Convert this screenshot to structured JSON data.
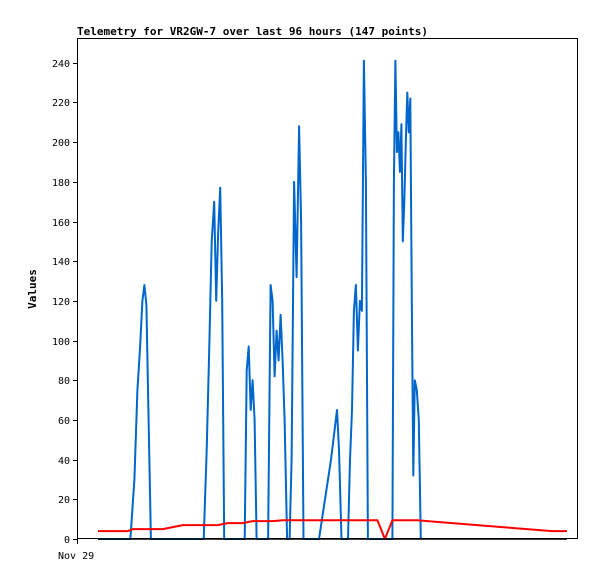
{
  "chart_data": {
    "type": "line",
    "title": "Telemetry for VR2GW-7 over last 96 hours (147 points)",
    "xlabel": "",
    "ylabel": "Values",
    "x_tick_labels": [
      "Nov 29"
    ],
    "xlim": [
      0,
      100
    ],
    "ylim": [
      0,
      252
    ],
    "y_ticks": [
      0,
      20,
      40,
      60,
      80,
      100,
      120,
      140,
      160,
      180,
      200,
      220,
      240
    ],
    "grid": false,
    "legend": "none",
    "series": [
      {
        "color": "#0066cc",
        "points": [
          [
            4,
            0
          ],
          [
            10.5,
            0
          ],
          [
            11.3,
            30
          ],
          [
            11.9,
            75
          ],
          [
            12.4,
            95
          ],
          [
            12.9,
            120
          ],
          [
            13.3,
            128
          ],
          [
            13.7,
            118
          ],
          [
            14.1,
            65
          ],
          [
            14.6,
            0
          ],
          [
            25.2,
            0
          ],
          [
            25.8,
            45
          ],
          [
            26.3,
            95
          ],
          [
            26.8,
            150
          ],
          [
            27.3,
            170
          ],
          [
            27.7,
            120
          ],
          [
            28.1,
            155
          ],
          [
            28.5,
            177
          ],
          [
            28.9,
            120
          ],
          [
            29.3,
            0
          ],
          [
            33.4,
            0
          ],
          [
            33.8,
            85
          ],
          [
            34.2,
            97
          ],
          [
            34.6,
            65
          ],
          [
            35.0,
            80
          ],
          [
            35.4,
            60
          ],
          [
            35.8,
            0
          ],
          [
            38.1,
            0
          ],
          [
            38.6,
            128
          ],
          [
            39.0,
            120
          ],
          [
            39.4,
            82
          ],
          [
            39.8,
            105
          ],
          [
            40.2,
            90
          ],
          [
            40.6,
            113
          ],
          [
            41.0,
            90
          ],
          [
            41.4,
            60
          ],
          [
            41.9,
            0
          ],
          [
            42.4,
            0
          ],
          [
            42.8,
            40
          ],
          [
            43.3,
            180
          ],
          [
            43.8,
            132
          ],
          [
            44.3,
            208
          ],
          [
            44.7,
            160
          ],
          [
            45.2,
            0
          ],
          [
            48.3,
            0
          ],
          [
            49.5,
            20
          ],
          [
            50.7,
            40
          ],
          [
            51.9,
            65
          ],
          [
            52.3,
            45
          ],
          [
            52.8,
            0
          ],
          [
            54.1,
            0
          ],
          [
            54.5,
            40
          ],
          [
            54.9,
            65
          ],
          [
            55.3,
            115
          ],
          [
            55.7,
            128
          ],
          [
            56.1,
            95
          ],
          [
            56.5,
            120
          ],
          [
            56.9,
            115
          ],
          [
            57.3,
            241
          ],
          [
            57.7,
            180
          ],
          [
            58.1,
            0
          ],
          [
            63.0,
            0
          ],
          [
            63.3,
            180
          ],
          [
            63.6,
            241
          ],
          [
            63.9,
            195
          ],
          [
            64.2,
            205
          ],
          [
            64.5,
            185
          ],
          [
            64.8,
            209
          ],
          [
            65.1,
            150
          ],
          [
            65.4,
            170
          ],
          [
            65.7,
            200
          ],
          [
            66.0,
            225
          ],
          [
            66.3,
            205
          ],
          [
            66.6,
            222
          ],
          [
            66.9,
            120
          ],
          [
            67.2,
            32
          ],
          [
            67.5,
            80
          ],
          [
            67.9,
            75
          ],
          [
            68.3,
            60
          ],
          [
            68.7,
            0
          ]
        ]
      },
      {
        "color": "#ff0000",
        "points": [
          [
            4,
            4
          ],
          [
            10,
            4
          ],
          [
            11,
            5
          ],
          [
            17,
            5
          ],
          [
            19,
            6
          ],
          [
            21,
            7
          ],
          [
            28,
            7
          ],
          [
            30,
            8
          ],
          [
            33,
            8
          ],
          [
            35,
            9
          ],
          [
            39,
            9
          ],
          [
            41,
            9.5
          ],
          [
            60,
            9.5
          ],
          [
            61.5,
            0
          ],
          [
            63,
            9.5
          ],
          [
            68,
            9.5
          ],
          [
            70,
            9
          ],
          [
            75,
            8
          ],
          [
            80,
            7
          ],
          [
            85,
            6
          ],
          [
            90,
            5
          ],
          [
            95,
            4
          ],
          [
            98,
            4
          ]
        ]
      },
      {
        "color": "#000000",
        "points": [
          [
            4,
            0
          ],
          [
            98,
            0
          ]
        ]
      }
    ]
  }
}
